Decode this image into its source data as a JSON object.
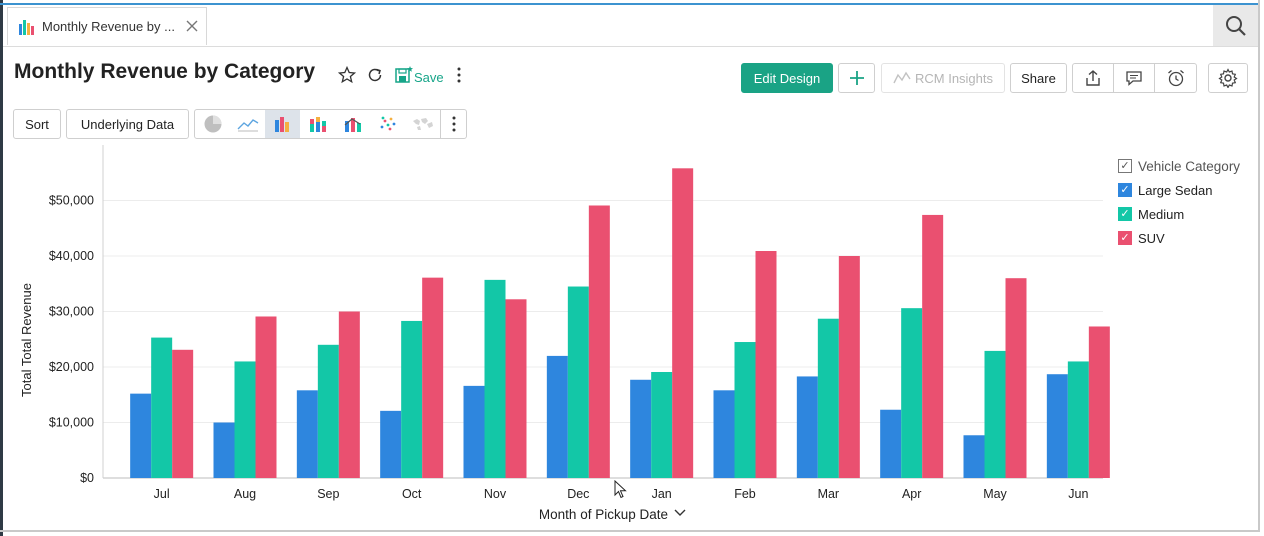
{
  "tab": {
    "label": "Monthly Revenue by ..."
  },
  "header": {
    "title": "Monthly Revenue by Category",
    "save_label": "Save",
    "edit_design_label": "Edit Design",
    "rcm_insights_label": "RCM Insights",
    "share_label": "Share"
  },
  "toolbar": {
    "sort_label": "Sort",
    "underlying_data_label": "Underlying Data"
  },
  "colors": {
    "large_sedan": "#2e86de",
    "medium": "#13c7a7",
    "suv": "#ea5070",
    "accent": "#1aa385"
  },
  "legend": {
    "title": "Vehicle Category",
    "items": [
      "Large Sedan",
      "Medium",
      "SUV"
    ]
  },
  "chart_data": {
    "type": "bar",
    "title": "Monthly Revenue by Category",
    "xlabel": "Month of Pickup Date",
    "ylabel": "Total Total Revenue",
    "ylim": [
      0,
      60000
    ],
    "yticks": [
      "$0",
      "$10,000",
      "$20,000",
      "$30,000",
      "$40,000",
      "$50,000"
    ],
    "grid": true,
    "legend_position": "right",
    "categories": [
      "Jul",
      "Aug",
      "Sep",
      "Oct",
      "Nov",
      "Dec",
      "Jan",
      "Feb",
      "Mar",
      "Apr",
      "May",
      "Jun"
    ],
    "series": [
      {
        "name": "Large Sedan",
        "values": [
          15200,
          10000,
          15800,
          12100,
          16600,
          22000,
          17700,
          15800,
          18300,
          12300,
          7700,
          18700
        ]
      },
      {
        "name": "Medium",
        "values": [
          25300,
          21000,
          24000,
          28300,
          35700,
          34500,
          19100,
          24500,
          28700,
          30600,
          22900,
          21000
        ]
      },
      {
        "name": "SUV",
        "values": [
          23100,
          29100,
          30000,
          36100,
          32200,
          49100,
          55800,
          40900,
          40000,
          47400,
          36000,
          27300
        ]
      }
    ]
  }
}
